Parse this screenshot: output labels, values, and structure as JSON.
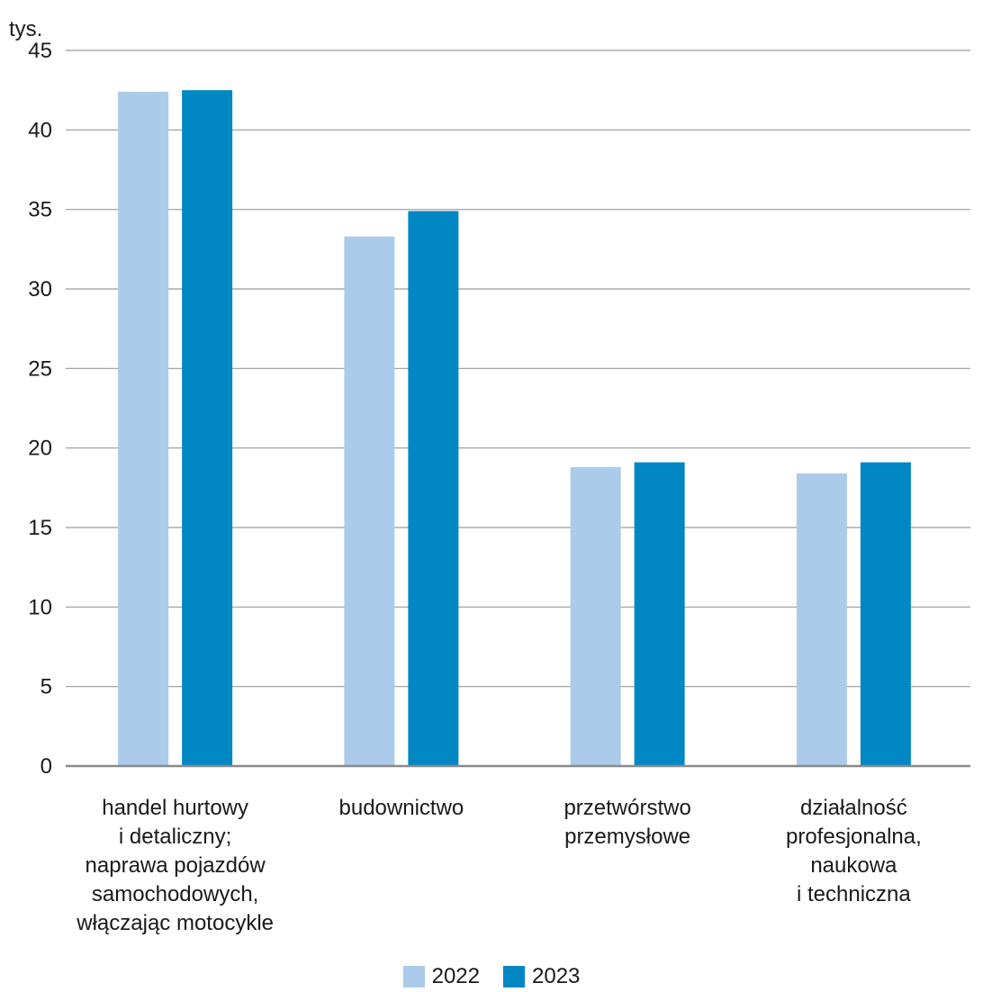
{
  "chart_data": {
    "type": "bar",
    "ylabel": "tys.",
    "ylim": [
      0,
      45
    ],
    "yticks": [
      0,
      5,
      10,
      15,
      20,
      25,
      30,
      35,
      40,
      45
    ],
    "categories": [
      [
        "handel hurtowy",
        "i detaliczny;",
        "naprawa pojazdów",
        "samochodowych,",
        "włączając motocykle"
      ],
      [
        "budownictwo"
      ],
      [
        "przetwórstwo",
        "przemysłowe"
      ],
      [
        "działalność",
        "profesjonalna,",
        "naukowa",
        "i techniczna"
      ]
    ],
    "series": [
      {
        "name": "2022",
        "color": "#abcbea",
        "values": [
          42.4,
          33.3,
          18.8,
          18.4
        ]
      },
      {
        "name": "2023",
        "color": "#0087c4",
        "values": [
          42.5,
          34.9,
          19.1,
          19.1
        ]
      }
    ],
    "grid": true,
    "legend": "bottom-center"
  }
}
